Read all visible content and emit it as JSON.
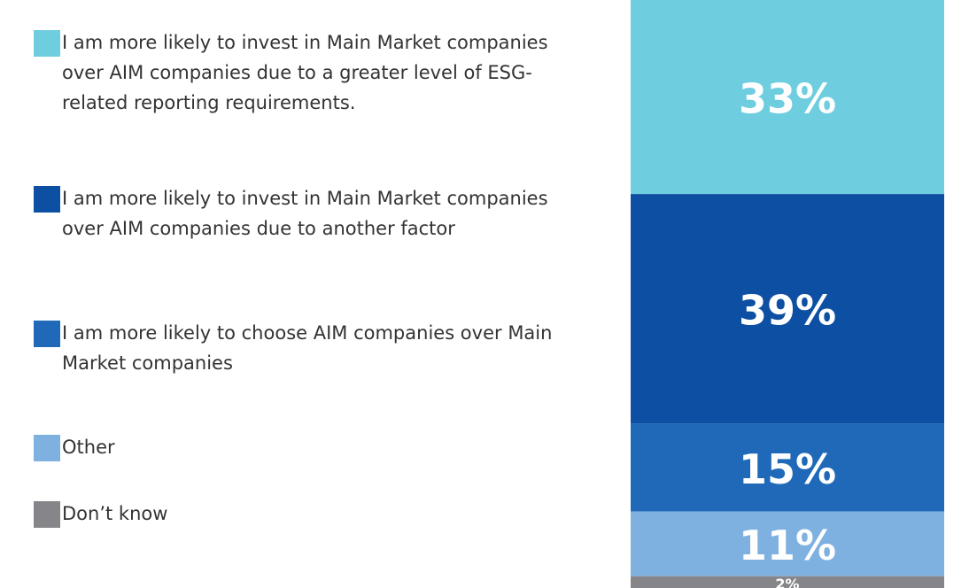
{
  "chart_data": {
    "type": "bar",
    "stacked": true,
    "categories": [
      null
    ],
    "series": [
      {
        "name": "I am more likely to invest in Main Market companies over AIM companies due to a greater level of ESG-related reporting requirements.",
        "color": "#6fcde0",
        "values": [
          33
        ],
        "value_labels": [
          "33%"
        ]
      },
      {
        "name": "I am more likely to invest in Main Market companies over AIM companies due to another factor",
        "color": "#0d4fa3",
        "values": [
          39
        ],
        "value_labels": [
          "39%"
        ]
      },
      {
        "name": "I am more likely to choose AIM companies over Main Market companies",
        "color": "#1f69b8",
        "values": [
          15
        ],
        "value_labels": [
          "15%"
        ]
      },
      {
        "name": "Other",
        "color": "#7fb1e0",
        "values": [
          11
        ],
        "value_labels": [
          "11%"
        ]
      },
      {
        "name": "Don’t know",
        "color": "#86868a",
        "values": [
          2
        ],
        "value_labels": [
          "2%"
        ]
      }
    ]
  }
}
